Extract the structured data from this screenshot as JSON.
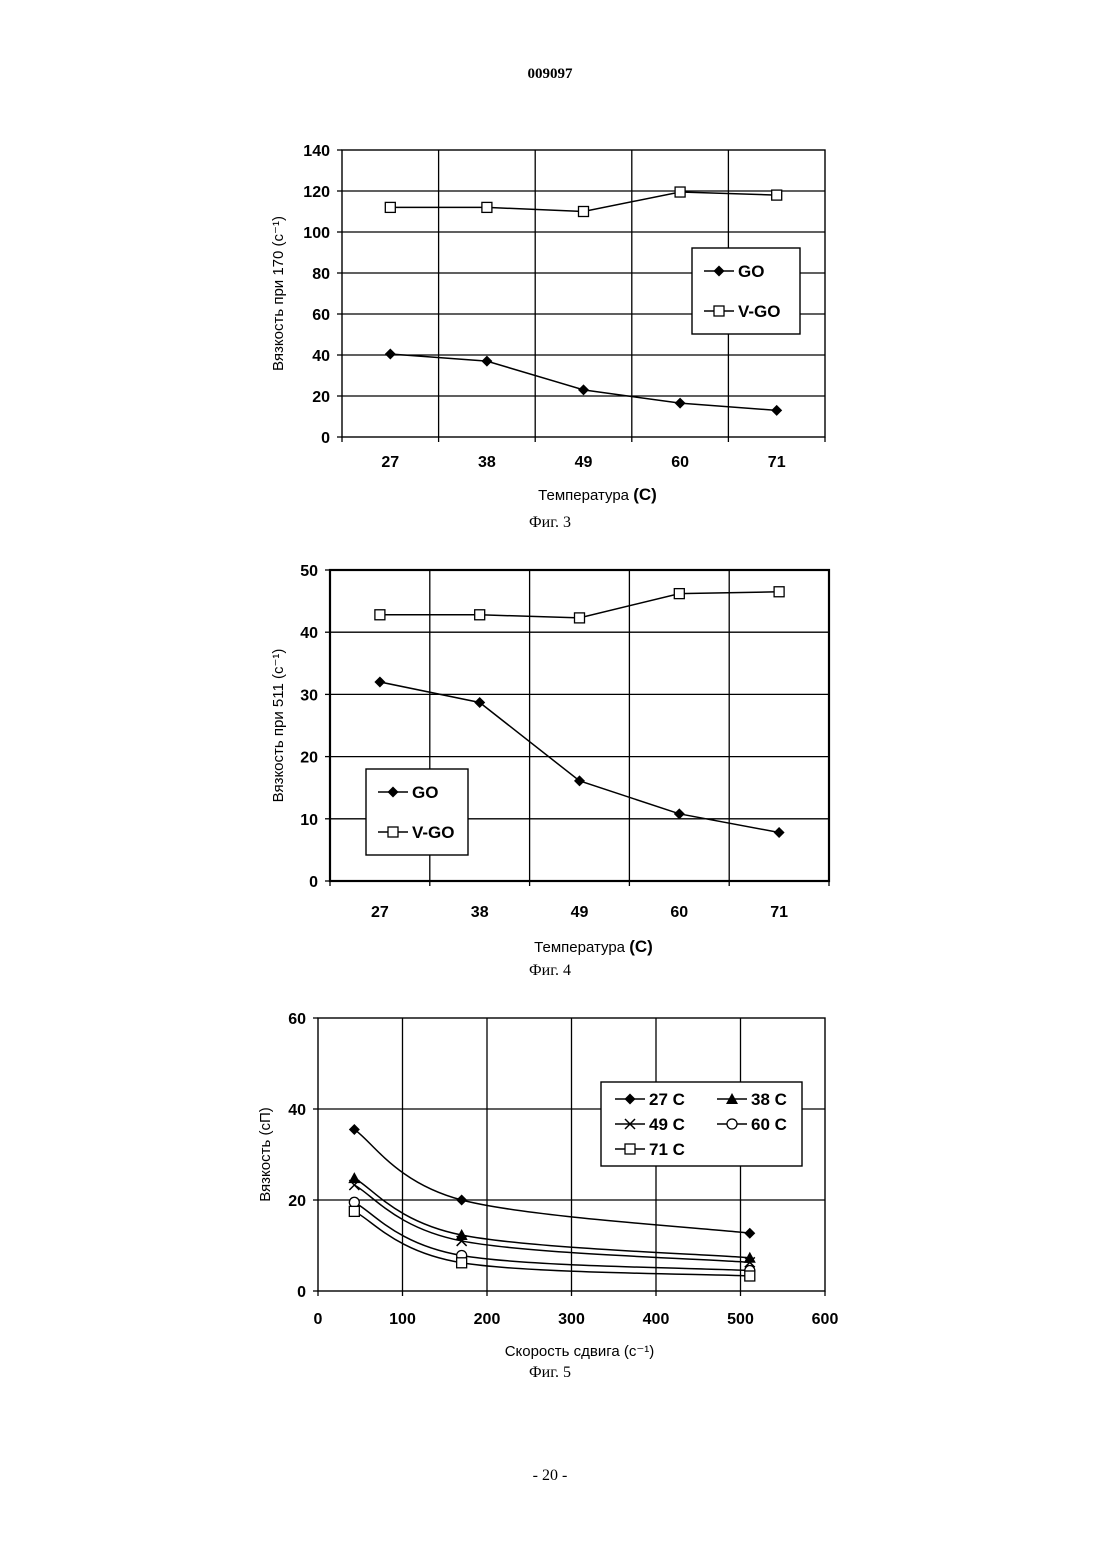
{
  "header": {
    "doc_number": "009097"
  },
  "footer": {
    "page_number": "- 20 -"
  },
  "chart_data": [
    {
      "type": "line",
      "caption": "Фиг. 3",
      "xlabel_main": "Температура ",
      "xlabel_unit": "(C)",
      "ylabel": "Вязкость при 170 (с⁻¹)",
      "categories": [
        "27",
        "38",
        "49",
        "60",
        "71"
      ],
      "ylim": [
        0,
        140
      ],
      "yticks": [
        0,
        20,
        40,
        60,
        80,
        100,
        120,
        140
      ],
      "grid": true,
      "legend_position": "right",
      "series": [
        {
          "name": "GO",
          "marker": "diamond",
          "values": [
            40.5,
            37,
            23,
            16.5,
            13
          ]
        },
        {
          "name": "V-GO",
          "marker": "square-open",
          "values": [
            112,
            112,
            110,
            119.5,
            118
          ]
        }
      ]
    },
    {
      "type": "line",
      "caption": "Фиг. 4",
      "xlabel_main": "Температура ",
      "xlabel_unit": "(C)",
      "ylabel": "Вязкость при 511 (с⁻¹)",
      "categories": [
        "27",
        "38",
        "49",
        "60",
        "71"
      ],
      "ylim": [
        0,
        50
      ],
      "yticks": [
        0,
        10,
        20,
        30,
        40,
        50
      ],
      "grid": true,
      "legend_position": "bottom-left",
      "series": [
        {
          "name": "GO",
          "marker": "diamond",
          "values": [
            32,
            28.7,
            16.1,
            10.8,
            7.8
          ]
        },
        {
          "name": "V-GO",
          "marker": "square-open",
          "values": [
            42.8,
            42.8,
            42.3,
            46.2,
            46.5
          ]
        }
      ]
    },
    {
      "type": "line",
      "caption": "Фиг. 5",
      "xlabel": "Скорость сдвига (с⁻¹)",
      "ylabel": "Вязкость (сП)",
      "xlim": [
        0,
        600
      ],
      "xticks": [
        0,
        100,
        200,
        300,
        400,
        500,
        600
      ],
      "ylim": [
        0,
        60
      ],
      "yticks": [
        0,
        20,
        40,
        60
      ],
      "grid": true,
      "legend_position": "top-right",
      "series": [
        {
          "name": "27 C",
          "marker": "diamond",
          "x": [
            43,
            170,
            511
          ],
          "values": [
            35.5,
            20,
            12.7
          ]
        },
        {
          "name": "38 C",
          "marker": "triangle",
          "x": [
            43,
            170,
            511
          ],
          "values": [
            24.8,
            12.3,
            7.3
          ]
        },
        {
          "name": "49 C",
          "marker": "x",
          "x": [
            43,
            170,
            511
          ],
          "values": [
            23.3,
            11,
            6.3
          ]
        },
        {
          "name": "60 C",
          "marker": "circle-open",
          "x": [
            43,
            170,
            511
          ],
          "values": [
            19.5,
            7.8,
            4.5
          ]
        },
        {
          "name": "71 C",
          "marker": "square-open",
          "x": [
            43,
            170,
            511
          ],
          "values": [
            17.5,
            6.2,
            3.3
          ]
        }
      ]
    }
  ]
}
